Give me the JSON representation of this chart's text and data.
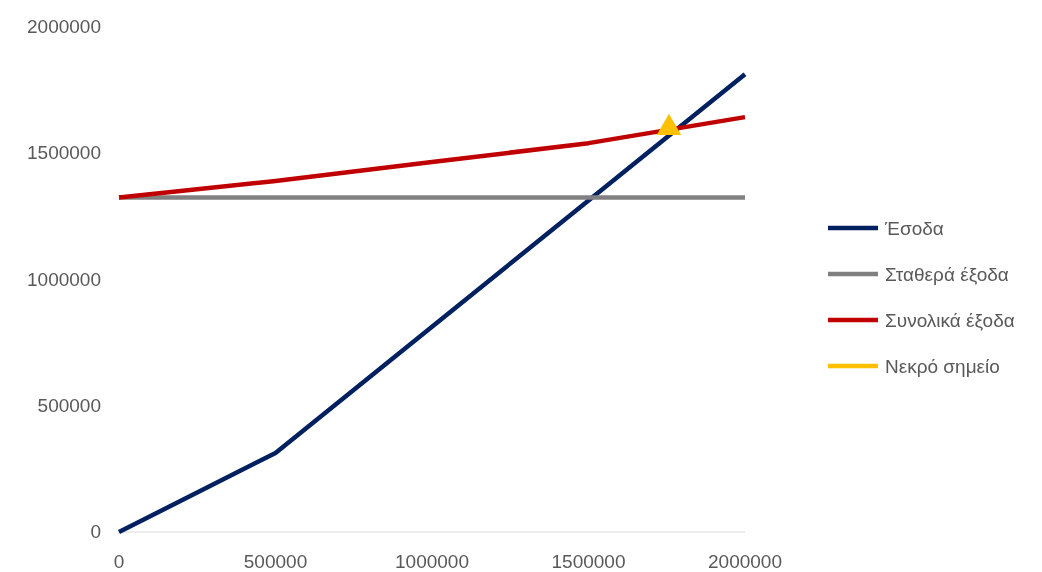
{
  "chart_data": {
    "type": "line",
    "x": [
      0,
      500000,
      1000000,
      1500000,
      2000000
    ],
    "series": [
      {
        "name": "Έσοδα",
        "color": "#002060",
        "values": [
          0,
          313000,
          813000,
          1313000,
          1813000
        ]
      },
      {
        "name": "Σταθερά έξοδα",
        "color": "#808080",
        "values": [
          1325000,
          1325000,
          1325000,
          1325000,
          1325000
        ]
      },
      {
        "name": "Συνολικά έξοδα",
        "color": "#c00000",
        "values": [
          1325000,
          1390000,
          1465000,
          1540000,
          1643000
        ]
      },
      {
        "name": "Νεκρό σημείο",
        "type": "scatter",
        "marker": "triangle",
        "color": "#ffc000",
        "x": [
          1757000
        ],
        "values": [
          1612000
        ]
      }
    ],
    "xlim": [
      0,
      2000000
    ],
    "xticks": [
      0,
      500000,
      1000000,
      1500000,
      2000000
    ],
    "ylim": [
      0,
      2000000
    ],
    "yticks": [
      0,
      500000,
      1000000,
      1500000,
      2000000
    ],
    "grid": false,
    "legend": "right"
  }
}
